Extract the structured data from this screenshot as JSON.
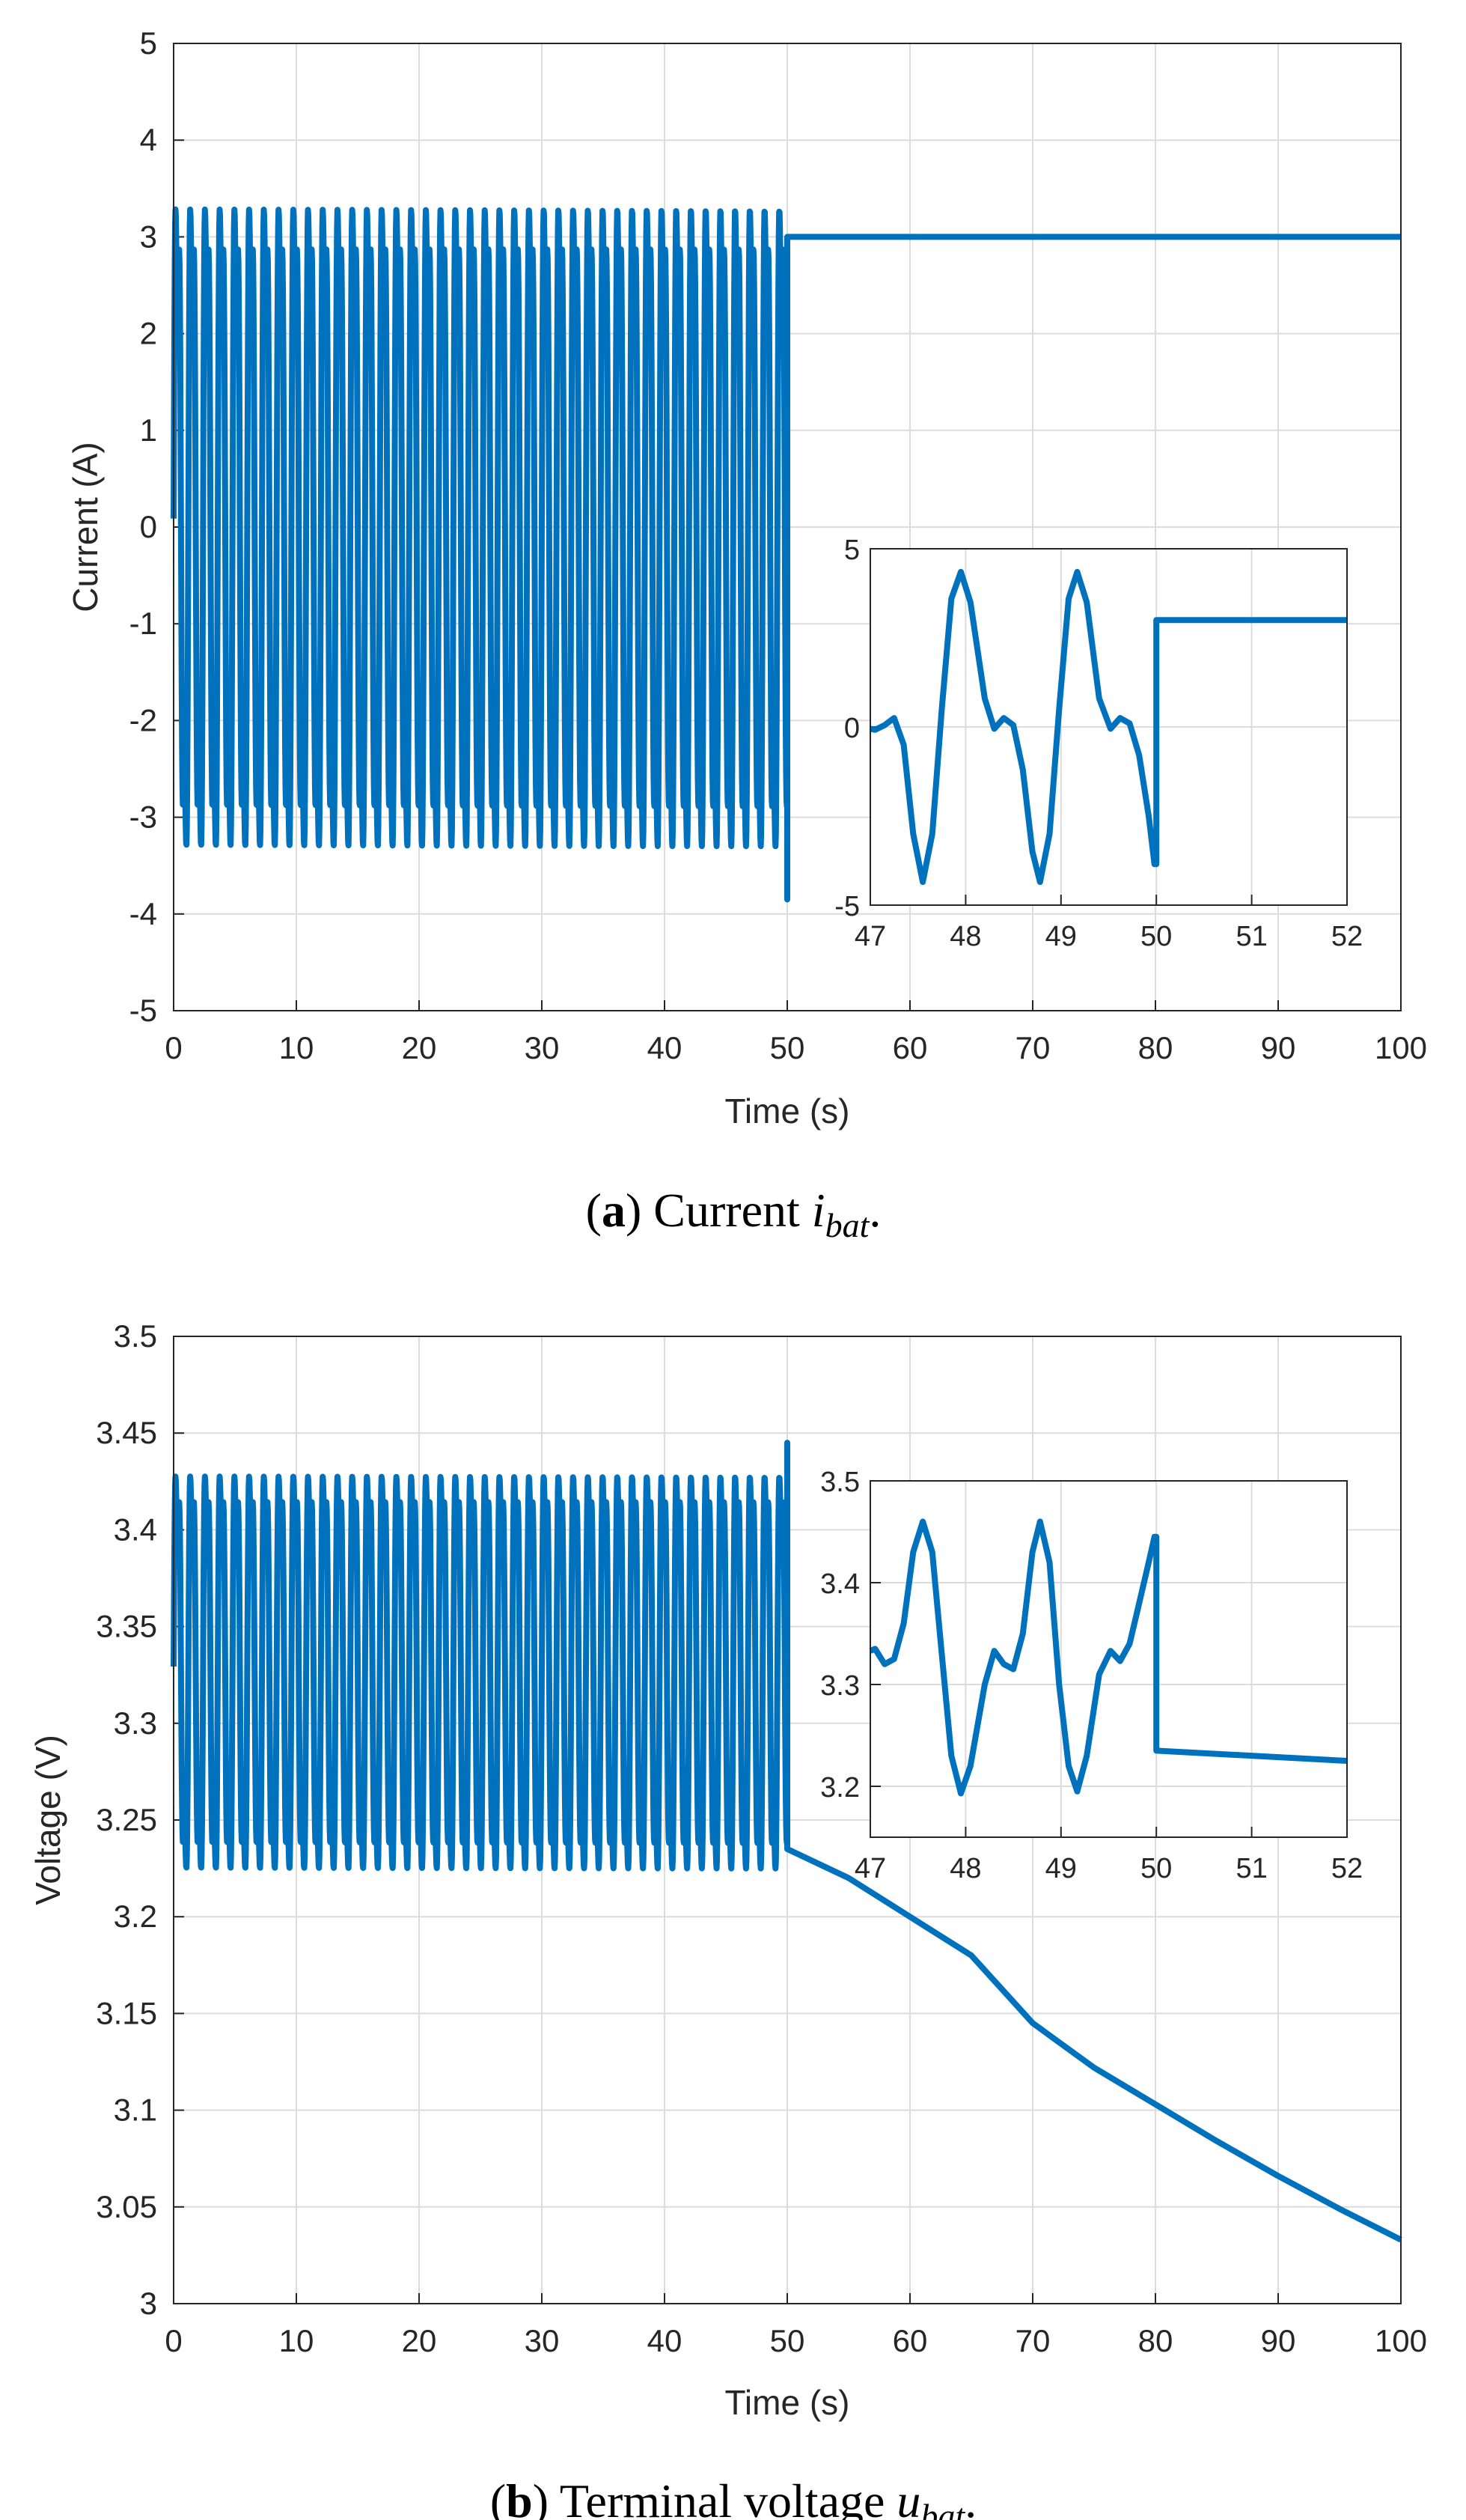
{
  "colors": {
    "line": "#0072BD",
    "grid": "#dcdcdc",
    "axis": "#262626"
  },
  "chart_data": [
    {
      "type": "line",
      "xlabel": "Time (s)",
      "ylabel": "Current (A)",
      "xlim": [
        0,
        100
      ],
      "ylim": [
        -5,
        5
      ],
      "xticks": [
        "0",
        "10",
        "20",
        "30",
        "40",
        "50",
        "60",
        "70",
        "80",
        "90",
        "100"
      ],
      "yticks": [
        "5",
        "4",
        "3",
        "2",
        "1",
        "0",
        "-1",
        "-2",
        "-3",
        "-4",
        "-5"
      ],
      "grid": true,
      "series": [
        {
          "description_visible": "oscillation 0-50 s then constant",
          "oscillation": {
            "t_start": 0,
            "t_end": 50,
            "period": 1.2,
            "max": 4.35,
            "min": -4.35,
            "secondary_peak": 0.25,
            "secondary_trough": -0.25
          },
          "step": {
            "t": 50,
            "value": 3.0
          },
          "final_point_before_step": -3.85,
          "t_end": 100
        }
      ],
      "caption": {
        "label": "a",
        "text": "Current",
        "symbol": "i",
        "subscript": "bat",
        "end": "."
      },
      "inset": {
        "xlim": [
          47,
          52
        ],
        "ylim": [
          -5,
          5
        ],
        "xticks": [
          "47",
          "48",
          "49",
          "50",
          "51",
          "52"
        ],
        "yticks": [
          "5",
          "0",
          "-5"
        ],
        "points": [
          [
            47.0,
            -0.05
          ],
          [
            47.05,
            -0.08
          ],
          [
            47.15,
            0.05
          ],
          [
            47.25,
            0.25
          ],
          [
            47.35,
            -0.5
          ],
          [
            47.45,
            -3.0
          ],
          [
            47.55,
            -4.35
          ],
          [
            47.65,
            -3.0
          ],
          [
            47.75,
            0.5
          ],
          [
            47.85,
            3.6
          ],
          [
            47.95,
            4.35
          ],
          [
            48.05,
            3.5
          ],
          [
            48.2,
            0.8
          ],
          [
            48.3,
            -0.05
          ],
          [
            48.4,
            0.25
          ],
          [
            48.5,
            0.05
          ],
          [
            48.6,
            -1.2
          ],
          [
            48.7,
            -3.5
          ],
          [
            48.78,
            -4.35
          ],
          [
            48.88,
            -3.0
          ],
          [
            48.98,
            0.5
          ],
          [
            49.08,
            3.6
          ],
          [
            49.17,
            4.35
          ],
          [
            49.27,
            3.5
          ],
          [
            49.4,
            0.8
          ],
          [
            49.52,
            -0.05
          ],
          [
            49.62,
            0.25
          ],
          [
            49.72,
            0.1
          ],
          [
            49.82,
            -0.8
          ],
          [
            49.92,
            -2.5
          ],
          [
            49.98,
            -3.85
          ],
          [
            50.0,
            -3.85
          ],
          [
            50.0,
            3.0
          ],
          [
            52.0,
            3.0
          ]
        ]
      }
    },
    {
      "type": "line",
      "xlabel": "Time (s)",
      "ylabel": "Voltage (V)",
      "xlim": [
        0,
        100
      ],
      "ylim": [
        3.0,
        3.5
      ],
      "xticks": [
        "0",
        "10",
        "20",
        "30",
        "40",
        "50",
        "60",
        "70",
        "80",
        "90",
        "100"
      ],
      "yticks": [
        "3.5",
        "3.45",
        "3.4",
        "3.35",
        "3.3",
        "3.25",
        "3.2",
        "3.15",
        "3.1",
        "3.05",
        "3"
      ],
      "grid": true,
      "series": [
        {
          "oscillation": {
            "t_start": 0,
            "t_end": 50,
            "period": 1.2,
            "max": 3.46,
            "min": 3.193,
            "secondary_peak": 3.333,
            "secondary_trough": 3.317
          },
          "final_point_before_step": 3.445,
          "decay": [
            [
              50,
              3.235
            ],
            [
              55,
              3.22
            ],
            [
              60,
              3.2
            ],
            [
              65,
              3.18
            ],
            [
              70,
              3.145
            ],
            [
              75,
              3.122
            ],
            [
              80,
              3.103
            ],
            [
              85,
              3.084
            ],
            [
              90,
              3.066
            ],
            [
              95,
              3.049
            ],
            [
              100,
              3.033
            ]
          ]
        }
      ],
      "caption": {
        "label": "b",
        "text": "Terminal voltage",
        "symbol": "u",
        "subscript": "bat",
        "end": "."
      },
      "inset": {
        "xlim": [
          47,
          52
        ],
        "ylim": [
          3.15,
          3.5
        ],
        "xticks": [
          "47",
          "48",
          "49",
          "50",
          "51",
          "52"
        ],
        "yticks": [
          "3.5",
          "3.4",
          "3.3",
          "3.2"
        ],
        "points": [
          [
            47.0,
            3.333
          ],
          [
            47.05,
            3.335
          ],
          [
            47.15,
            3.32
          ],
          [
            47.25,
            3.325
          ],
          [
            47.35,
            3.36
          ],
          [
            47.45,
            3.43
          ],
          [
            47.55,
            3.46
          ],
          [
            47.65,
            3.43
          ],
          [
            47.75,
            3.33
          ],
          [
            47.85,
            3.23
          ],
          [
            47.95,
            3.193
          ],
          [
            48.05,
            3.22
          ],
          [
            48.2,
            3.3
          ],
          [
            48.3,
            3.333
          ],
          [
            48.4,
            3.32
          ],
          [
            48.5,
            3.315
          ],
          [
            48.6,
            3.35
          ],
          [
            48.7,
            3.43
          ],
          [
            48.78,
            3.46
          ],
          [
            48.88,
            3.42
          ],
          [
            48.98,
            3.3
          ],
          [
            49.08,
            3.22
          ],
          [
            49.17,
            3.195
          ],
          [
            49.27,
            3.23
          ],
          [
            49.4,
            3.31
          ],
          [
            49.52,
            3.333
          ],
          [
            49.62,
            3.323
          ],
          [
            49.72,
            3.34
          ],
          [
            49.82,
            3.38
          ],
          [
            49.92,
            3.42
          ],
          [
            49.98,
            3.445
          ],
          [
            50.0,
            3.445
          ],
          [
            50.0,
            3.235
          ],
          [
            52.0,
            3.225
          ]
        ]
      }
    }
  ]
}
